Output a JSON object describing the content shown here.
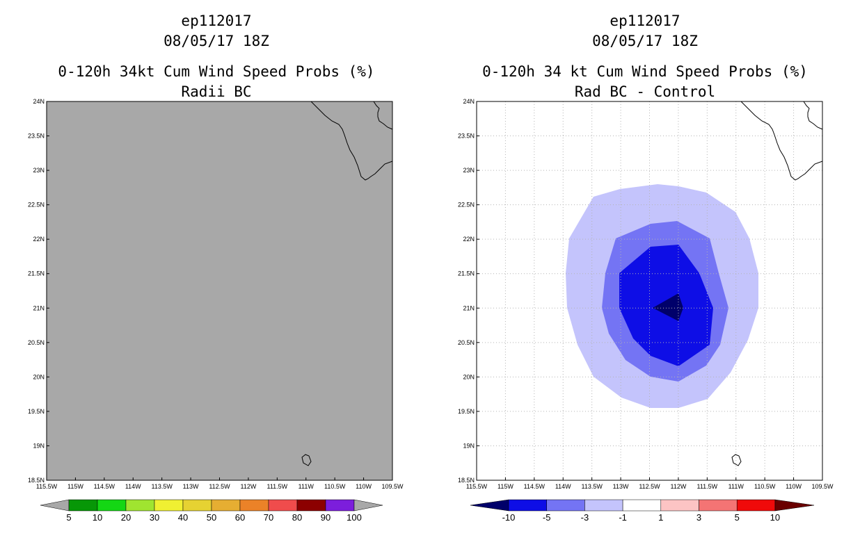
{
  "left_panel": {
    "title_lines": [
      "ep112017",
      "08/05/17 18Z",
      "0-120h 34kt Cum Wind Speed Probs (%)",
      "Radii BC"
    ],
    "map_fill_color": "#a8a8a8",
    "colorbar": {
      "colors": [
        "#079707",
        "#14d714",
        "#a0e430",
        "#f0f032",
        "#e6d232",
        "#e6ae32",
        "#eb8228",
        "#f04c4c",
        "#8c0000",
        "#7c1edc"
      ],
      "labels": [
        "5",
        "10",
        "20",
        "30",
        "40",
        "50",
        "60",
        "70",
        "80",
        "90",
        "100"
      ],
      "end_color": "#a8a8a8"
    }
  },
  "right_panel": {
    "title_lines": [
      "ep112017",
      "08/05/17 18Z",
      "0-120h 34 kt Cum Wind Speed Probs (%)",
      "Rad BC - Control"
    ],
    "contour_colors": {
      "minus1_to_minus3": "#c4c4fc",
      "minus3_to_minus5": "#7474f4",
      "minus5_to_minus10": "#0e0ee6",
      "below_minus10": "#00006a"
    },
    "colorbar": {
      "colors": [
        "#0e0ee6",
        "#7474f4",
        "#c4c4fc",
        "#ffffff",
        "#fcc4c4",
        "#f47474",
        "#f00a0a"
      ],
      "labels": [
        "-10",
        "-5",
        "-3",
        "-1",
        "1",
        "3",
        "5",
        "10"
      ],
      "end_low_color": "#00006a",
      "end_high_color": "#6a0000"
    }
  },
  "axes": {
    "lat_labels": [
      "24N",
      "23.5N",
      "23N",
      "22.5N",
      "22N",
      "21.5N",
      "21N",
      "20.5N",
      "20N",
      "19.5N",
      "19N",
      "18.5N"
    ],
    "lon_labels": [
      "115.5W",
      "115W",
      "114.5W",
      "114W",
      "113.5W",
      "113W",
      "112.5W",
      "112W",
      "111.5W",
      "111W",
      "110.5W",
      "110W",
      "109.5W"
    ],
    "lat_range": [
      18.5,
      24
    ],
    "lon_range": [
      -115.5,
      -109.5
    ]
  }
}
